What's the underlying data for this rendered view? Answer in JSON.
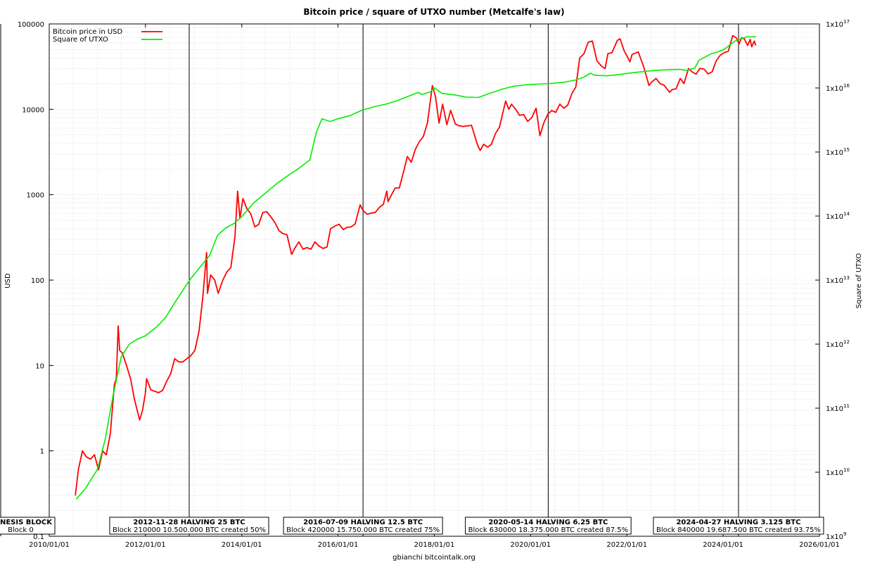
{
  "chart_data": {
    "type": "line",
    "title": "Bitcoin price / square of UTXO number (Metcalfe's law)",
    "ylabel": "USD",
    "y2label": "Square of UTXO",
    "footer": "gbianchi bitcointalk.org",
    "x_range": [
      "2010-01-01",
      "2026-01-01"
    ],
    "x_ticks": [
      "2010/01/01",
      "2012/01/01",
      "2014/01/01",
      "2016/01/01",
      "2018/01/01",
      "2020/01/01",
      "2022/01/01",
      "2024/01/01",
      "2026/01/01"
    ],
    "y_scale": "log",
    "y_range": [
      0.1,
      100000
    ],
    "y_ticks": [
      "0.1",
      "1",
      "10",
      "100",
      "1000",
      "10000",
      "100000"
    ],
    "y2_scale": "log",
    "y2_range": [
      1000000000.0,
      1e+17
    ],
    "y2_ticks": [
      {
        "base": "1x10",
        "exp": "9"
      },
      {
        "base": "1x10",
        "exp": "10"
      },
      {
        "base": "1x10",
        "exp": "11"
      },
      {
        "base": "1x10",
        "exp": "12"
      },
      {
        "base": "1x10",
        "exp": "13"
      },
      {
        "base": "1x10",
        "exp": "14"
      },
      {
        "base": "1x10",
        "exp": "15"
      },
      {
        "base": "1x10",
        "exp": "16"
      },
      {
        "base": "1x10",
        "exp": "17"
      }
    ],
    "grid": true,
    "legend_position": "top-left",
    "series": [
      {
        "name": "Bitcoin price in USD",
        "color": "#ff0000",
        "axis": "left",
        "points": [
          [
            "2010-07-18",
            0.3
          ],
          [
            "2010-08-10",
            0.6
          ],
          [
            "2010-09-10",
            1.0
          ],
          [
            "2010-10-10",
            0.85
          ],
          [
            "2010-11-10",
            0.8
          ],
          [
            "2010-12-10",
            0.9
          ],
          [
            "2011-01-10",
            0.6
          ],
          [
            "2011-02-10",
            1.0
          ],
          [
            "2011-03-10",
            0.9
          ],
          [
            "2011-04-10",
            1.6
          ],
          [
            "2011-05-10",
            6
          ],
          [
            "2011-05-25",
            7
          ],
          [
            "2011-06-08",
            29
          ],
          [
            "2011-06-20",
            15
          ],
          [
            "2011-07-10",
            14
          ],
          [
            "2011-08-10",
            10
          ],
          [
            "2011-09-10",
            7
          ],
          [
            "2011-10-10",
            4
          ],
          [
            "2011-11-18",
            2.3
          ],
          [
            "2011-12-10",
            3
          ],
          [
            "2011-12-31",
            4.7
          ],
          [
            "2012-01-10",
            7
          ],
          [
            "2012-02-10",
            5.2
          ],
          [
            "2012-03-10",
            5
          ],
          [
            "2012-04-10",
            4.8
          ],
          [
            "2012-05-10",
            5.1
          ],
          [
            "2012-06-10",
            6.5
          ],
          [
            "2012-07-10",
            8
          ],
          [
            "2012-08-10",
            12
          ],
          [
            "2012-09-10",
            11
          ],
          [
            "2012-10-10",
            11
          ],
          [
            "2012-11-10",
            12
          ],
          [
            "2012-12-10",
            13
          ],
          [
            "2013-01-10",
            15
          ],
          [
            "2013-02-10",
            25
          ],
          [
            "2013-03-10",
            60
          ],
          [
            "2013-04-09",
            210
          ],
          [
            "2013-04-16",
            70
          ],
          [
            "2013-05-10",
            115
          ],
          [
            "2013-06-10",
            100
          ],
          [
            "2013-07-06",
            70
          ],
          [
            "2013-08-10",
            100
          ],
          [
            "2013-09-10",
            125
          ],
          [
            "2013-10-10",
            140
          ],
          [
            "2013-11-10",
            320
          ],
          [
            "2013-11-30",
            1100
          ],
          [
            "2013-12-18",
            530
          ],
          [
            "2014-01-10",
            900
          ],
          [
            "2014-02-10",
            680
          ],
          [
            "2014-03-10",
            600
          ],
          [
            "2014-04-10",
            420
          ],
          [
            "2014-05-10",
            450
          ],
          [
            "2014-06-10",
            620
          ],
          [
            "2014-07-10",
            630
          ],
          [
            "2014-08-10",
            550
          ],
          [
            "2014-09-10",
            470
          ],
          [
            "2014-10-10",
            380
          ],
          [
            "2014-11-10",
            350
          ],
          [
            "2014-12-10",
            340
          ],
          [
            "2015-01-14",
            200
          ],
          [
            "2015-02-10",
            240
          ],
          [
            "2015-03-10",
            280
          ],
          [
            "2015-04-10",
            230
          ],
          [
            "2015-05-10",
            240
          ],
          [
            "2015-06-10",
            230
          ],
          [
            "2015-07-10",
            280
          ],
          [
            "2015-08-10",
            250
          ],
          [
            "2015-09-10",
            235
          ],
          [
            "2015-10-10",
            245
          ],
          [
            "2015-11-05",
            400
          ],
          [
            "2015-12-10",
            430
          ],
          [
            "2016-01-10",
            450
          ],
          [
            "2016-02-10",
            390
          ],
          [
            "2016-03-10",
            415
          ],
          [
            "2016-04-10",
            420
          ],
          [
            "2016-05-10",
            455
          ],
          [
            "2016-06-17",
            760
          ],
          [
            "2016-07-10",
            650
          ],
          [
            "2016-08-10",
            590
          ],
          [
            "2016-09-10",
            610
          ],
          [
            "2016-10-10",
            620
          ],
          [
            "2016-11-10",
            710
          ],
          [
            "2016-12-10",
            770
          ],
          [
            "2017-01-05",
            1100
          ],
          [
            "2017-01-15",
            830
          ],
          [
            "2017-02-10",
            1000
          ],
          [
            "2017-03-10",
            1200
          ],
          [
            "2017-04-10",
            1200
          ],
          [
            "2017-05-10",
            1800
          ],
          [
            "2017-06-10",
            2800
          ],
          [
            "2017-07-10",
            2400
          ],
          [
            "2017-08-10",
            3400
          ],
          [
            "2017-09-10",
            4200
          ],
          [
            "2017-10-10",
            4800
          ],
          [
            "2017-11-10",
            7000
          ],
          [
            "2017-12-17",
            19000
          ],
          [
            "2018-01-10",
            14000
          ],
          [
            "2018-02-06",
            6900
          ],
          [
            "2018-03-05",
            11500
          ],
          [
            "2018-04-06",
            6600
          ],
          [
            "2018-05-05",
            9700
          ],
          [
            "2018-06-10",
            6700
          ],
          [
            "2018-07-10",
            6400
          ],
          [
            "2018-08-10",
            6300
          ],
          [
            "2018-09-10",
            6400
          ],
          [
            "2018-10-10",
            6500
          ],
          [
            "2018-11-25",
            3800
          ],
          [
            "2018-12-15",
            3300
          ],
          [
            "2019-01-10",
            3900
          ],
          [
            "2019-02-10",
            3600
          ],
          [
            "2019-03-10",
            3900
          ],
          [
            "2019-04-10",
            5200
          ],
          [
            "2019-05-10",
            6200
          ],
          [
            "2019-06-26",
            12500
          ],
          [
            "2019-07-20",
            10000
          ],
          [
            "2019-08-10",
            11500
          ],
          [
            "2019-09-10",
            10000
          ],
          [
            "2019-10-10",
            8500
          ],
          [
            "2019-11-10",
            8700
          ],
          [
            "2019-12-10",
            7200
          ],
          [
            "2020-01-10",
            8000
          ],
          [
            "2020-02-12",
            10300
          ],
          [
            "2020-03-12",
            4900
          ],
          [
            "2020-04-10",
            6900
          ],
          [
            "2020-05-10",
            8700
          ],
          [
            "2020-06-10",
            9700
          ],
          [
            "2020-07-10",
            9200
          ],
          [
            "2020-08-10",
            11500
          ],
          [
            "2020-09-10",
            10300
          ],
          [
            "2020-10-10",
            11300
          ],
          [
            "2020-11-10",
            15300
          ],
          [
            "2020-12-10",
            18300
          ],
          [
            "2021-01-08",
            40000
          ],
          [
            "2021-02-10",
            45000
          ],
          [
            "2021-03-13",
            61000
          ],
          [
            "2021-04-14",
            63000
          ],
          [
            "2021-05-19",
            37000
          ],
          [
            "2021-06-22",
            32000
          ],
          [
            "2021-07-20",
            30000
          ],
          [
            "2021-08-10",
            45000
          ],
          [
            "2021-09-10",
            46000
          ],
          [
            "2021-10-20",
            64000
          ],
          [
            "2021-11-10",
            67000
          ],
          [
            "2021-12-10",
            49000
          ],
          [
            "2022-01-24",
            36000
          ],
          [
            "2022-02-10",
            44000
          ],
          [
            "2022-03-28",
            47000
          ],
          [
            "2022-05-10",
            31000
          ],
          [
            "2022-06-18",
            19000
          ],
          [
            "2022-07-10",
            21000
          ],
          [
            "2022-08-10",
            23000
          ],
          [
            "2022-09-10",
            20000
          ],
          [
            "2022-10-10",
            19200
          ],
          [
            "2022-11-21",
            15800
          ],
          [
            "2022-12-10",
            17000
          ],
          [
            "2023-01-10",
            17400
          ],
          [
            "2023-02-10",
            23000
          ],
          [
            "2023-03-10",
            20000
          ],
          [
            "2023-04-14",
            30000
          ],
          [
            "2023-05-10",
            27500
          ],
          [
            "2023-06-10",
            25800
          ],
          [
            "2023-07-10",
            30200
          ],
          [
            "2023-08-10",
            29500
          ],
          [
            "2023-09-10",
            26000
          ],
          [
            "2023-10-10",
            27500
          ],
          [
            "2023-11-10",
            37000
          ],
          [
            "2023-12-10",
            43000
          ],
          [
            "2024-01-10",
            46000
          ],
          [
            "2024-02-10",
            48000
          ],
          [
            "2024-03-14",
            73000
          ],
          [
            "2024-04-10",
            69000
          ],
          [
            "2024-05-01",
            58000
          ],
          [
            "2024-05-20",
            69000
          ],
          [
            "2024-06-10",
            67000
          ],
          [
            "2024-07-05",
            56000
          ],
          [
            "2024-07-25",
            66000
          ],
          [
            "2024-08-05",
            54000
          ],
          [
            "2024-08-25",
            63000
          ],
          [
            "2024-09-05",
            56000
          ]
        ]
      },
      {
        "name": "Square of UTXO",
        "color": "#00ee00",
        "axis": "right",
        "points": [
          [
            "2010-07-25",
            3800000000.0
          ],
          [
            "2010-10-01",
            5500000000.0
          ],
          [
            "2011-01-01",
            11000000000.0
          ],
          [
            "2011-03-01",
            32000000000.0
          ],
          [
            "2011-05-01",
            160000000000.0
          ],
          [
            "2011-07-01",
            630000000000.0
          ],
          [
            "2011-09-01",
            1000000000000.0
          ],
          [
            "2011-11-01",
            1200000000000.0
          ],
          [
            "2012-01-01",
            1350000000000.0
          ],
          [
            "2012-04-01",
            1900000000000.0
          ],
          [
            "2012-06-01",
            2600000000000.0
          ],
          [
            "2012-09-01",
            5200000000000.0
          ],
          [
            "2012-12-01",
            10000000000000.0
          ],
          [
            "2013-03-01",
            17000000000000.0
          ],
          [
            "2013-05-01",
            24000000000000.0
          ],
          [
            "2013-07-01",
            50000000000000.0
          ],
          [
            "2013-09-01",
            65000000000000.0
          ],
          [
            "2013-11-01",
            76000000000000.0
          ],
          [
            "2014-01-01",
            98000000000000.0
          ],
          [
            "2014-04-01",
            160000000000000.0
          ],
          [
            "2014-07-01",
            230000000000000.0
          ],
          [
            "2014-10-01",
            330000000000000.0
          ],
          [
            "2015-01-01",
            450000000000000.0
          ],
          [
            "2015-03-01",
            540000000000000.0
          ],
          [
            "2015-06-01",
            750000000000000.0
          ],
          [
            "2015-07-20",
            2000000000000000.0
          ],
          [
            "2015-09-01",
            3300000000000000.0
          ],
          [
            "2015-11-01",
            3000000000000000.0
          ],
          [
            "2016-01-01",
            3300000000000000.0
          ],
          [
            "2016-04-01",
            3700000000000000.0
          ],
          [
            "2016-07-01",
            4500000000000000.0
          ],
          [
            "2016-10-01",
            5100000000000000.0
          ],
          [
            "2017-01-01",
            5600000000000000.0
          ],
          [
            "2017-04-01",
            6400000000000000.0
          ],
          [
            "2017-06-01",
            7200000000000000.0
          ],
          [
            "2017-09-01",
            8500000000000000.0
          ],
          [
            "2017-10-01",
            7900000000000000.0
          ],
          [
            "2017-12-01",
            8700000000000000.0
          ],
          [
            "2018-01-01",
            1e+16
          ],
          [
            "2018-03-01",
            8200000000000000.0
          ],
          [
            "2018-06-01",
            7800000000000000.0
          ],
          [
            "2018-09-01",
            7200000000000000.0
          ],
          [
            "2018-12-01",
            7100000000000000.0
          ],
          [
            "2019-03-01",
            8300000000000000.0
          ],
          [
            "2019-06-01",
            9600000000000000.0
          ],
          [
            "2019-09-01",
            1.07e+16
          ],
          [
            "2019-12-01",
            1.12e+16
          ],
          [
            "2020-03-01",
            1.15e+16
          ],
          [
            "2020-06-01",
            1.18e+16
          ],
          [
            "2020-09-01",
            1.22e+16
          ],
          [
            "2020-12-01",
            1.32e+16
          ],
          [
            "2021-02-01",
            1.45e+16
          ],
          [
            "2021-04-01",
            1.7e+16
          ],
          [
            "2021-05-01",
            1.58e+16
          ],
          [
            "2021-08-01",
            1.55e+16
          ],
          [
            "2021-11-01",
            1.62e+16
          ],
          [
            "2022-02-01",
            1.72e+16
          ],
          [
            "2022-05-01",
            1.8e+16
          ],
          [
            "2022-08-01",
            1.88e+16
          ],
          [
            "2022-11-01",
            1.92e+16
          ],
          [
            "2023-02-01",
            1.95e+16
          ],
          [
            "2023-04-01",
            1.88e+16
          ],
          [
            "2023-06-01",
            2.05e+16
          ],
          [
            "2023-07-01",
            2.7e+16
          ],
          [
            "2023-10-01",
            3.4e+16
          ],
          [
            "2024-01-01",
            3.9e+16
          ],
          [
            "2024-04-01",
            5.4e+16
          ],
          [
            "2024-07-01",
            6.3e+16
          ],
          [
            "2024-09-05",
            6.3e+16
          ]
        ]
      }
    ],
    "events": [
      {
        "date": "2009-01-03",
        "title": "GENESIS BLOCK",
        "detail": "Block 0"
      },
      {
        "date": "2012-11-28",
        "title": "2012-11-28 HALVING 25 BTC",
        "detail": "Block 210000 10.500.000 BTC created 50%"
      },
      {
        "date": "2016-07-09",
        "title": "2016-07-09 HALVING 12.5 BTC",
        "detail": "Block 420000 15.750.000 BTC created 75%"
      },
      {
        "date": "2020-05-14",
        "title": "2020-05-14 HALVING 6.25 BTC",
        "detail": "Block 630000 18.375.000 BTC created 87.5%"
      },
      {
        "date": "2024-04-27",
        "title": "2024-04-27 HALVING 3.125 BTC",
        "detail": "Block 840000 19.687.500 BTC created 93.75%"
      }
    ]
  }
}
